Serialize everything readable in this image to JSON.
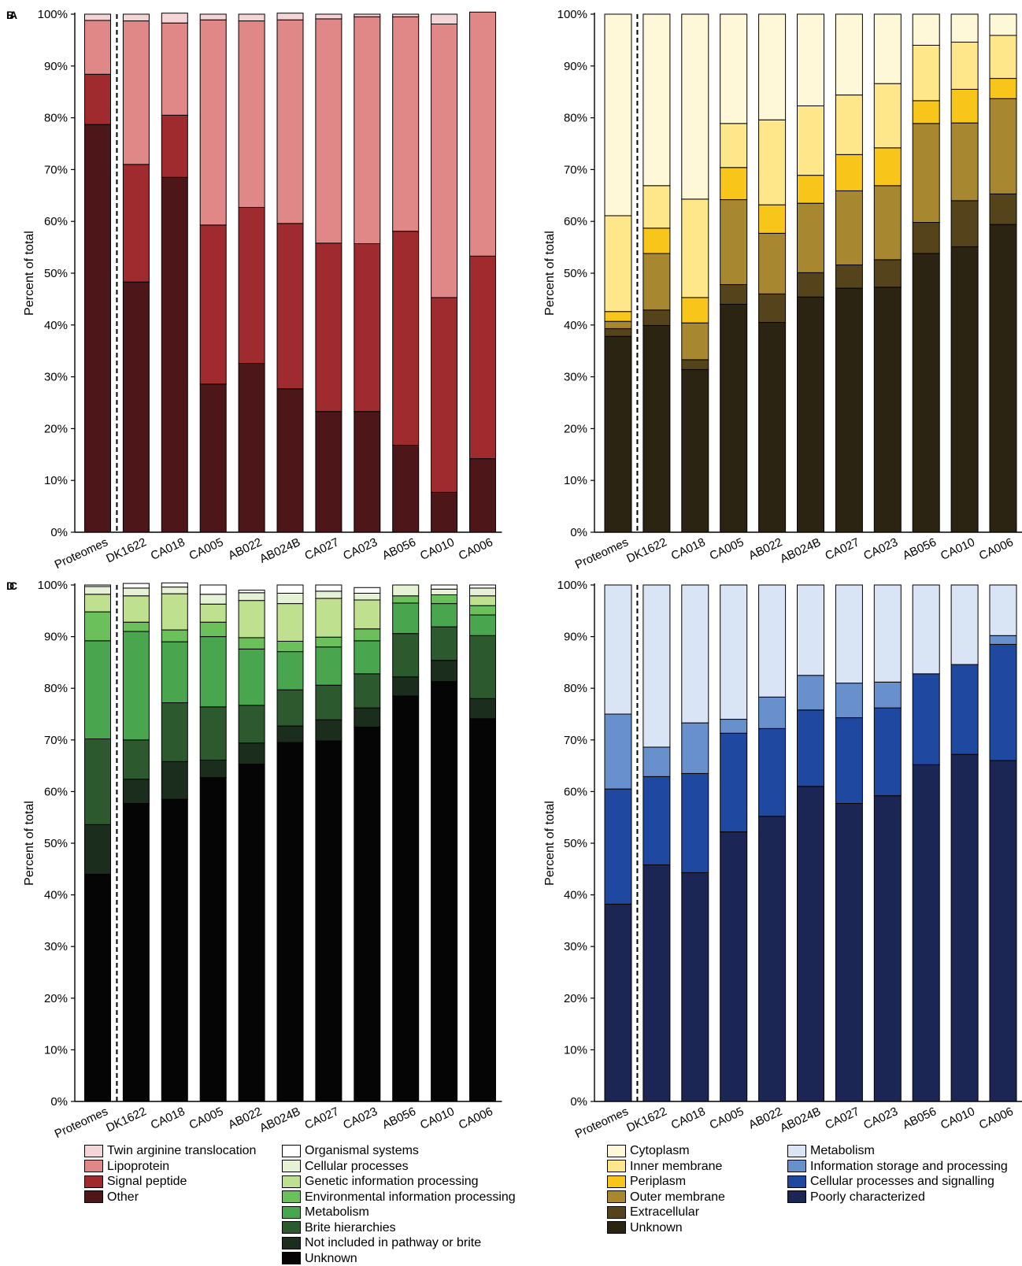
{
  "chart_data": [
    {
      "panel": "A",
      "type": "bar",
      "stacked": true,
      "ylabel": "Percent of total",
      "ylim": [
        0,
        100
      ],
      "yticks": [
        "0%",
        "10%",
        "20%",
        "30%",
        "40%",
        "50%",
        "60%",
        "70%",
        "80%",
        "90%",
        "100%"
      ],
      "categories": [
        "Proteomes",
        "DK1622",
        "CA018",
        "CA005",
        "AB022",
        "AB024B",
        "CA027",
        "CA023",
        "AB056",
        "CA010",
        "CA006"
      ],
      "series": [
        {
          "name": "Other",
          "color": "#4d1619",
          "values": [
            78.7,
            48.3,
            68.5,
            28.6,
            32.6,
            27.7,
            23.3,
            23.3,
            16.8,
            7.7,
            14.2
          ]
        },
        {
          "name": "Signal peptide",
          "color": "#a02b2e",
          "values": [
            9.7,
            22.7,
            12.0,
            30.7,
            30.1,
            31.9,
            32.5,
            32.4,
            41.3,
            37.6,
            39.1
          ]
        },
        {
          "name": "Lipoprotein",
          "color": "#e08888",
          "values": [
            10.4,
            27.7,
            17.8,
            39.6,
            36.0,
            39.3,
            43.3,
            43.8,
            41.4,
            52.8,
            47.1
          ]
        },
        {
          "name": "Twin arginine translocation",
          "color": "#f4d5d7",
          "values": [
            1.2,
            1.3,
            1.9,
            1.1,
            1.3,
            1.3,
            0.9,
            0.5,
            0.5,
            1.9,
            0.0
          ]
        }
      ]
    },
    {
      "panel": "B",
      "type": "bar",
      "stacked": true,
      "ylabel": "Percent of total",
      "ylim": [
        0,
        100
      ],
      "yticks": [
        "0%",
        "10%",
        "20%",
        "30%",
        "40%",
        "50%",
        "60%",
        "70%",
        "80%",
        "90%",
        "100%"
      ],
      "categories": [
        "Proteomes",
        "DK1622",
        "CA018",
        "CA005",
        "AB022",
        "AB024B",
        "CA027",
        "CA023",
        "AB056",
        "CA010",
        "CA006"
      ],
      "series": [
        {
          "name": "Unknown",
          "color": "#2b2413",
          "values": [
            37.8,
            39.9,
            31.4,
            44.0,
            40.5,
            45.4,
            47.1,
            47.3,
            53.8,
            55.1,
            59.4
          ]
        },
        {
          "name": "Extracellular",
          "color": "#54431b",
          "values": [
            1.5,
            3.0,
            1.9,
            3.8,
            5.5,
            4.7,
            4.5,
            5.3,
            6.0,
            8.9,
            5.9
          ]
        },
        {
          "name": "Outer membrane",
          "color": "#a88731",
          "values": [
            1.4,
            10.9,
            7.1,
            16.4,
            11.7,
            13.4,
            14.3,
            14.3,
            19.1,
            15.0,
            18.4
          ]
        },
        {
          "name": "Periplasm",
          "color": "#f8c61a",
          "values": [
            1.9,
            4.9,
            4.9,
            6.2,
            5.5,
            5.4,
            7.0,
            7.3,
            4.4,
            6.5,
            3.9
          ]
        },
        {
          "name": "Inner membrane",
          "color": "#fde78a",
          "values": [
            18.5,
            8.2,
            19.0,
            8.5,
            16.4,
            13.4,
            11.5,
            12.4,
            10.7,
            9.1,
            8.3
          ]
        },
        {
          "name": "Cytoplasm",
          "color": "#fff8d8",
          "values": [
            38.9,
            33.1,
            35.7,
            21.1,
            20.4,
            17.7,
            15.6,
            13.4,
            6.0,
            5.4,
            4.1
          ]
        }
      ]
    },
    {
      "panel": "C",
      "type": "bar",
      "stacked": true,
      "ylabel": "Percent of total",
      "ylim": [
        0,
        100
      ],
      "yticks": [
        "0%",
        "10%",
        "20%",
        "30%",
        "40%",
        "50%",
        "60%",
        "70%",
        "80%",
        "90%",
        "100%"
      ],
      "categories": [
        "Proteomes",
        "DK1622",
        "CA018",
        "CA005",
        "AB022",
        "AB024B",
        "CA027",
        "CA023",
        "AB056",
        "CA010",
        "CA006"
      ],
      "series": [
        {
          "name": "Unknown",
          "color": "#050505",
          "values": [
            44.0,
            57.7,
            58.5,
            62.7,
            65.3,
            69.5,
            69.8,
            72.5,
            78.5,
            81.3,
            74.1
          ]
        },
        {
          "name": "Not included in pathway or brite",
          "color": "#1b2d1c",
          "values": [
            9.6,
            4.7,
            7.3,
            3.4,
            4.1,
            3.2,
            4.1,
            3.7,
            3.7,
            4.1,
            3.9
          ]
        },
        {
          "name": "Brite hierarchies",
          "color": "#2c5a2e",
          "values": [
            16.6,
            7.6,
            11.4,
            10.3,
            7.3,
            7.0,
            6.7,
            6.6,
            8.4,
            6.5,
            12.2
          ]
        },
        {
          "name": "Metabolism",
          "color": "#4aa64e",
          "values": [
            19.0,
            21.0,
            11.8,
            13.6,
            10.9,
            7.4,
            7.4,
            6.4,
            5.9,
            4.5,
            4.0
          ]
        },
        {
          "name": "Environmental information processing",
          "color": "#6cc05c",
          "values": [
            5.6,
            1.8,
            2.3,
            2.8,
            2.2,
            2.0,
            1.9,
            2.3,
            1.4,
            1.7,
            1.8
          ]
        },
        {
          "name": "Genetic information processing",
          "color": "#bfe08e",
          "values": [
            3.4,
            5.1,
            7.0,
            3.5,
            7.2,
            7.3,
            7.5,
            5.6,
            0.0,
            0.0,
            1.9
          ]
        },
        {
          "name": "Cellular processes",
          "color": "#e6f2d6",
          "values": [
            1.5,
            1.5,
            1.3,
            1.9,
            1.5,
            2.0,
            1.4,
            1.3,
            2.1,
            1.1,
            1.5
          ]
        },
        {
          "name": "Organismal systems",
          "color": "#ffffff",
          "values": [
            0.3,
            0.9,
            0.8,
            1.8,
            0.5,
            1.6,
            1.2,
            1.1,
            0.0,
            0.8,
            0.6
          ]
        }
      ]
    },
    {
      "panel": "D",
      "type": "bar",
      "stacked": true,
      "ylabel": "Percent of total",
      "ylim": [
        0,
        100
      ],
      "yticks": [
        "0%",
        "10%",
        "20%",
        "30%",
        "40%",
        "50%",
        "60%",
        "70%",
        "80%",
        "90%",
        "100%"
      ],
      "categories": [
        "Proteomes",
        "DK1622",
        "CA018",
        "CA005",
        "AB022",
        "AB024B",
        "CA027",
        "CA023",
        "AB056",
        "CA010",
        "CA006"
      ],
      "series": [
        {
          "name": "Poorly characterized",
          "color": "#1b2654",
          "values": [
            38.2,
            45.8,
            44.3,
            52.2,
            55.2,
            61.0,
            57.7,
            59.2,
            65.2,
            67.2,
            66.0
          ]
        },
        {
          "name": "Cellular processes and signalling",
          "color": "#1f48a0",
          "values": [
            22.3,
            17.1,
            19.2,
            19.1,
            17.0,
            14.8,
            16.6,
            17.0,
            17.6,
            17.4,
            22.5
          ]
        },
        {
          "name": "Information storage and processing",
          "color": "#6790cc",
          "values": [
            14.5,
            5.7,
            9.8,
            2.7,
            6.1,
            6.7,
            6.7,
            5.0,
            0.0,
            0.0,
            1.7
          ]
        },
        {
          "name": "Metabolism",
          "color": "#d9e4f4",
          "values": [
            25.0,
            31.4,
            26.7,
            26.0,
            21.7,
            17.5,
            19.0,
            18.8,
            17.2,
            15.4,
            9.8
          ]
        }
      ]
    }
  ],
  "panels": [
    {
      "label": "A"
    },
    {
      "label": "B"
    },
    {
      "label": "C"
    },
    {
      "label": "D"
    }
  ],
  "legends": {
    "a": [
      {
        "label": "Twin arginine translocation",
        "color": "#f4d5d7"
      },
      {
        "label": "Lipoprotein",
        "color": "#e08888"
      },
      {
        "label": "Signal peptide",
        "color": "#a02b2e"
      },
      {
        "label": "Other",
        "color": "#4d1619"
      }
    ],
    "c": [
      {
        "label": "Organismal systems",
        "color": "#ffffff"
      },
      {
        "label": "Cellular processes",
        "color": "#e6f2d6"
      },
      {
        "label": "Genetic information processing",
        "color": "#bfe08e"
      },
      {
        "label": "Environmental information processing",
        "color": "#6cc05c"
      },
      {
        "label": "Metabolism",
        "color": "#4aa64e"
      },
      {
        "label": "Brite hierarchies",
        "color": "#2c5a2e"
      },
      {
        "label": "Not included in pathway or brite",
        "color": "#1b2d1c"
      },
      {
        "label": "Unknown",
        "color": "#050505"
      }
    ],
    "b": [
      {
        "label": "Cytoplasm",
        "color": "#fff8d8"
      },
      {
        "label": "Inner membrane",
        "color": "#fde78a"
      },
      {
        "label": "Periplasm",
        "color": "#f8c61a"
      },
      {
        "label": "Outer membrane",
        "color": "#a88731"
      },
      {
        "label": "Extracellular",
        "color": "#54431b"
      },
      {
        "label": "Unknown",
        "color": "#2b2413"
      }
    ],
    "d": [
      {
        "label": "Metabolism",
        "color": "#d9e4f4"
      },
      {
        "label": "Information storage and processing",
        "color": "#6790cc"
      },
      {
        "label": "Cellular processes and signalling",
        "color": "#1f48a0"
      },
      {
        "label": "Poorly characterized",
        "color": "#1b2654"
      }
    ]
  }
}
